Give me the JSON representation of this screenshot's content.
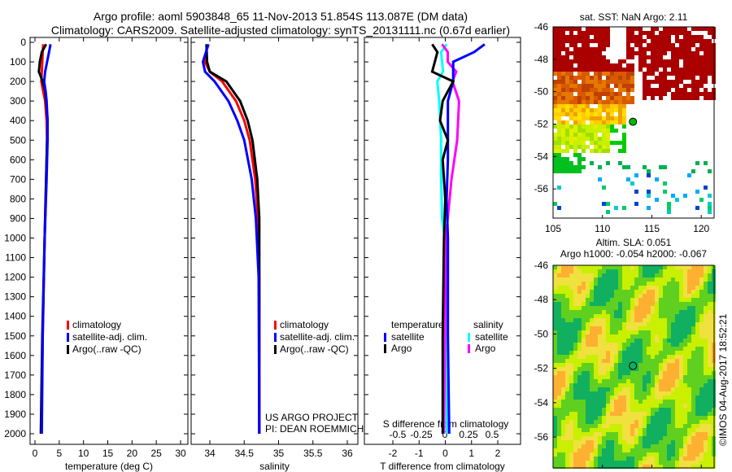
{
  "title": "Argo profile: aoml 5903848_65 11-Nov-2013 51.854S 113.087E (DM data)",
  "subtitle": "Climatology: CARS2009. Satellite-adjusted climatology: synTS_20131111.nc (0.67d earlier)",
  "timestamp": "©IMOS 04-Aug-2017 18:52:21",
  "colors": {
    "climatology": "#ff0000",
    "satellite": "#0000ff",
    "argo": "#000000",
    "sal_satellite": "#00ffff",
    "sal_argo": "#ff00ff"
  },
  "chart_data": [
    {
      "type": "line",
      "xlabel": "temperature (deg C)",
      "xlim": [
        -1,
        31
      ],
      "ylim": [
        2050,
        0
      ],
      "xticks": [
        "0",
        "5",
        "10",
        "15",
        "20",
        "25",
        "30"
      ],
      "xtick_values": [
        0,
        5,
        10,
        15,
        20,
        25,
        30
      ],
      "yticks": [
        "0",
        "100",
        "200",
        "300",
        "400",
        "500",
        "600",
        "700",
        "800",
        "900",
        "1000",
        "1100",
        "1200",
        "1300",
        "1400",
        "1500",
        "1600",
        "1700",
        "1800",
        "1900",
        "2000"
      ],
      "legend": [
        "climatology",
        "satellite-adj. clim.",
        "Argo(..raw -QC)"
      ],
      "series": [
        {
          "name": "climatology",
          "depth": [
            10,
            50,
            100,
            150,
            200,
            250,
            300,
            400,
            500,
            700,
            1000,
            1500,
            2000
          ],
          "values": [
            1.7,
            1.6,
            1.5,
            1.4,
            1.3,
            1.7,
            2.1,
            2.4,
            2.5,
            2.3,
            2.0,
            1.6,
            1.3
          ]
        },
        {
          "name": "satellite-adj. clim.",
          "depth": [
            10,
            50,
            100,
            150,
            200,
            250,
            300,
            400,
            500,
            700,
            1000,
            1500,
            2000
          ],
          "values": [
            3.2,
            2.9,
            2.5,
            2.1,
            1.9,
            2.2,
            2.4,
            2.6,
            2.6,
            2.4,
            2.0,
            1.6,
            1.4
          ]
        },
        {
          "name": "Argo(..raw -QC)",
          "depth": [
            10,
            50,
            100,
            150,
            200,
            250,
            300,
            400,
            500,
            700,
            1000,
            1500,
            2000
          ],
          "values": [
            2.3,
            1.4,
            1.0,
            0.8,
            1.6,
            2.1,
            2.3,
            2.6,
            2.5,
            2.3,
            2.0,
            1.5,
            1.2
          ]
        }
      ]
    },
    {
      "type": "line",
      "xlabel": "salinity",
      "xlim": [
        33.7,
        36.1
      ],
      "ylim": [
        2050,
        0
      ],
      "xticks": [
        "34",
        "34.5",
        "35",
        "35.5",
        "36"
      ],
      "xtick_values": [
        34,
        34.5,
        35,
        35.5,
        36
      ],
      "legend": [
        "climatology",
        "satellite-adj. clim.",
        "Argo(..raw -QC)"
      ],
      "annotation": [
        "US ARGO PROJECT",
        "PI: DEAN ROEMMICH"
      ],
      "series": [
        {
          "name": "climatology",
          "depth": [
            10,
            100,
            150,
            200,
            300,
            400,
            500,
            700,
            900,
            1200,
            2000
          ],
          "values": [
            33.96,
            33.93,
            34.0,
            34.18,
            34.38,
            34.5,
            34.58,
            34.66,
            34.7,
            34.72,
            34.72
          ]
        },
        {
          "name": "satellite-adj. clim.",
          "depth": [
            10,
            100,
            150,
            200,
            300,
            400,
            500,
            700,
            900,
            1200,
            2000
          ],
          "values": [
            33.98,
            33.9,
            33.93,
            34.07,
            34.27,
            34.4,
            34.5,
            34.61,
            34.67,
            34.71,
            34.72
          ]
        },
        {
          "name": "Argo(..raw -QC)",
          "depth": [
            10,
            100,
            150,
            200,
            300,
            400,
            500,
            700,
            900,
            1200,
            2000
          ],
          "values": [
            33.95,
            33.96,
            34.0,
            34.24,
            34.44,
            34.55,
            34.62,
            34.69,
            34.72,
            34.72,
            34.72
          ]
        }
      ]
    },
    {
      "type": "line",
      "xlabel": "T difference from climatology",
      "x2label": "S difference from climatology",
      "xlim": [
        -2.5,
        2.5
      ],
      "ylim": [
        2050,
        0
      ],
      "xticks": [
        "-2",
        "-1",
        "0",
        "1",
        "2"
      ],
      "xtick_values": [
        -2,
        -1,
        0,
        1,
        2
      ],
      "x2ticks": [
        "-0.5",
        "-0.25",
        "0",
        "0.25",
        "0.5"
      ],
      "x2tick_values": [
        -0.5,
        -0.25,
        0,
        0.25,
        0.5
      ],
      "legend_titles": [
        "temperature",
        "salinity"
      ],
      "legend": [
        "satellite",
        "Argo",
        "satellite",
        "Argo"
      ],
      "series": [
        {
          "name": "T satellite",
          "axis": "T",
          "depth": [
            10,
            50,
            100,
            150,
            200,
            300,
            400,
            600,
            800,
            1000,
            1500,
            2000
          ],
          "values": [
            1.5,
            1.1,
            0.3,
            0.3,
            0.3,
            0.1,
            0.1,
            0.1,
            0.05,
            0.1,
            0.1,
            0.15
          ]
        },
        {
          "name": "T Argo",
          "axis": "T",
          "depth": [
            10,
            50,
            100,
            150,
            200,
            300,
            400,
            500,
            600,
            800,
            1000,
            1500,
            2000
          ],
          "values": [
            -0.5,
            -0.3,
            -0.4,
            -0.5,
            0.3,
            -0.1,
            -0.2,
            0.1,
            -0.1,
            0,
            -0.05,
            -0.1,
            -0.1
          ]
        },
        {
          "name": "S satellite",
          "axis": "S",
          "depth": [
            10,
            50,
            100,
            150,
            200,
            300,
            500,
            700,
            900,
            1000,
            1500,
            2000
          ],
          "values": [
            0.02,
            -0.04,
            -0.03,
            -0.02,
            -0.08,
            -0.06,
            -0.04,
            -0.04,
            -0.03,
            0,
            0.02,
            0.02
          ]
        },
        {
          "name": "S Argo",
          "axis": "S",
          "depth": [
            10,
            50,
            100,
            150,
            200,
            300,
            500,
            700,
            900,
            1000,
            1500,
            2000
          ],
          "values": [
            -0.03,
            0.03,
            0.03,
            0.12,
            0.08,
            0.15,
            0.13,
            0.07,
            0.03,
            0.01,
            0,
            -0.01
          ]
        }
      ]
    },
    {
      "type": "heatmap",
      "title": "sat. SST: NaN Argo: 2.11",
      "xlim": [
        105,
        121.3
      ],
      "ylim": [
        -57.8,
        -46
      ],
      "xticks": [
        "105",
        "110",
        "115",
        "120"
      ],
      "xtick_values": [
        105,
        110,
        115,
        120
      ],
      "yticks": [
        "-46",
        "-48",
        "-50",
        "-52",
        "-54",
        "-56"
      ],
      "ytick_values": [
        -46,
        -48,
        -50,
        -52,
        -54,
        -56
      ],
      "marker": {
        "lon": 113.087,
        "lat": -51.854
      }
    },
    {
      "type": "heatmap",
      "title": "Altim. SLA: 0.051",
      "subtitle": "Argo h1000: -0.054 h2000: -0.067",
      "xlim": [
        105,
        121.3
      ],
      "ylim": [
        -57.8,
        -46
      ],
      "xticks": [
        "105",
        "110",
        "115",
        "120"
      ],
      "xtick_values": [
        105,
        110,
        115,
        120
      ],
      "yticks": [
        "-46",
        "-48",
        "-50",
        "-52",
        "-54",
        "-56"
      ],
      "ytick_values": [
        -46,
        -48,
        -50,
        -52,
        -54,
        -56
      ],
      "marker": {
        "lon": 113.087,
        "lat": -51.854
      }
    }
  ]
}
